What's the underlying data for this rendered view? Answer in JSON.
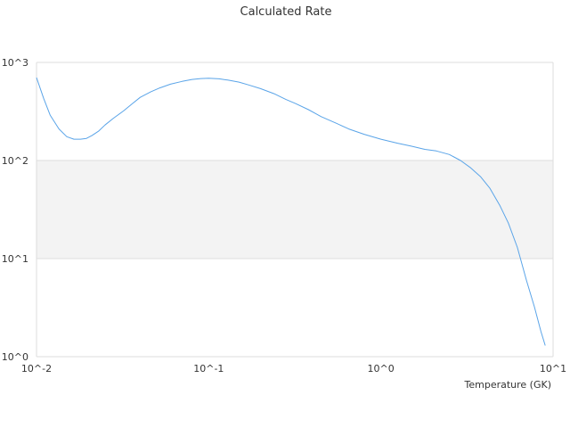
{
  "chart_data": {
    "type": "line",
    "title": "Calculated Rate",
    "xlabel": "Temperature (GK)",
    "ylabel": "",
    "x_scale": "log",
    "y_scale": "log",
    "xlim": [
      0.01,
      10
    ],
    "ylim": [
      1,
      1000
    ],
    "x_ticks": [
      {
        "value": 0.01,
        "label": "10^-2"
      },
      {
        "value": 0.1,
        "label": "10^-1"
      },
      {
        "value": 1,
        "label": "10^0"
      },
      {
        "value": 10,
        "label": "10^1"
      }
    ],
    "y_ticks": [
      {
        "value": 1,
        "label": "10^0"
      },
      {
        "value": 10,
        "label": "10^1"
      },
      {
        "value": 100,
        "label": "10^2"
      },
      {
        "value": 1000,
        "label": "10^3"
      }
    ],
    "grid": true,
    "legend": "none",
    "colors": {
      "line": "#5aa4e8",
      "band": "#f3f3f3",
      "grid": "#dddddd"
    },
    "series": [
      {
        "x": [
          0.01,
          0.011,
          0.012,
          0.0135,
          0.015,
          0.0165,
          0.018,
          0.0195,
          0.021,
          0.023,
          0.025,
          0.028,
          0.032,
          0.036,
          0.04,
          0.046,
          0.052,
          0.06,
          0.07,
          0.08,
          0.09,
          0.1,
          0.115,
          0.13,
          0.15,
          0.17,
          0.2,
          0.24,
          0.28,
          0.32,
          0.38,
          0.45,
          0.55,
          0.65,
          0.8,
          1.0,
          1.25,
          1.5,
          1.8,
          2.1,
          2.5,
          2.9,
          3.3,
          3.8,
          4.3,
          4.9,
          5.5,
          6.2,
          7.0,
          7.8,
          8.5,
          9.0
        ],
        "y": [
          700,
          430,
          290,
          210,
          175,
          165,
          165,
          168,
          180,
          200,
          230,
          270,
          320,
          380,
          440,
          500,
          550,
          600,
          640,
          670,
          685,
          690,
          680,
          660,
          630,
          590,
          540,
          480,
          420,
          380,
          330,
          280,
          240,
          210,
          185,
          165,
          150,
          140,
          130,
          125,
          115,
          100,
          85,
          68,
          52,
          35,
          23,
          13,
          6,
          3.2,
          1.8,
          1.3
        ]
      }
    ]
  }
}
